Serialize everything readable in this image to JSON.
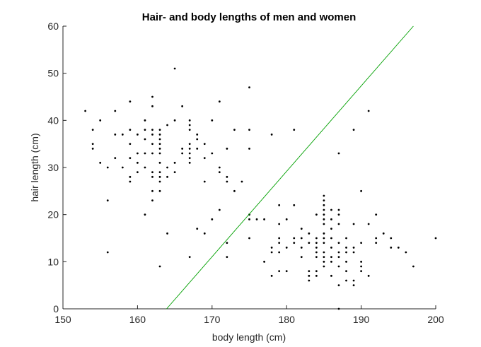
{
  "chart_data": {
    "type": "scatter",
    "title": "Hair- and body lengths of men and women",
    "xlabel": "body length (cm)",
    "ylabel": "hair length (cm)",
    "xlim": [
      150,
      200
    ],
    "ylim": [
      0,
      60
    ],
    "xticks": [
      150,
      160,
      170,
      180,
      190,
      200
    ],
    "yticks": [
      0,
      10,
      20,
      30,
      40,
      50,
      60
    ],
    "grid": false,
    "colors": {
      "points": "#000000",
      "boundary": "#00a000",
      "axis": "#262626"
    },
    "series": [
      {
        "kind": "points",
        "points": [
          [
            153,
            42
          ],
          [
            154,
            38
          ],
          [
            154,
            35
          ],
          [
            154,
            34
          ],
          [
            155,
            40
          ],
          [
            155,
            31
          ],
          [
            156,
            30
          ],
          [
            156,
            23
          ],
          [
            156,
            12
          ],
          [
            157,
            42
          ],
          [
            157,
            37
          ],
          [
            157,
            32
          ],
          [
            158,
            37
          ],
          [
            158,
            30
          ],
          [
            159,
            44
          ],
          [
            159,
            38
          ],
          [
            159,
            35
          ],
          [
            159,
            32
          ],
          [
            159,
            28
          ],
          [
            159,
            27
          ],
          [
            160,
            37
          ],
          [
            160,
            33
          ],
          [
            160,
            31
          ],
          [
            160,
            29
          ],
          [
            161,
            40
          ],
          [
            161,
            38
          ],
          [
            161,
            36
          ],
          [
            161,
            33
          ],
          [
            161,
            30
          ],
          [
            161,
            20
          ],
          [
            162,
            45
          ],
          [
            162,
            43
          ],
          [
            162,
            38
          ],
          [
            162,
            37
          ],
          [
            162,
            35
          ],
          [
            162,
            33
          ],
          [
            162,
            29
          ],
          [
            162,
            28
          ],
          [
            162,
            25
          ],
          [
            162,
            23
          ],
          [
            163,
            38
          ],
          [
            163,
            37
          ],
          [
            163,
            36
          ],
          [
            163,
            35
          ],
          [
            163,
            34
          ],
          [
            163,
            33
          ],
          [
            163,
            31
          ],
          [
            163,
            29
          ],
          [
            163,
            28
          ],
          [
            163,
            27
          ],
          [
            163,
            25
          ],
          [
            163,
            9
          ],
          [
            164,
            39
          ],
          [
            164,
            30
          ],
          [
            164,
            28
          ],
          [
            164,
            16
          ],
          [
            165,
            51
          ],
          [
            165,
            40
          ],
          [
            165,
            31
          ],
          [
            165,
            29
          ],
          [
            166,
            43
          ],
          [
            166,
            34
          ],
          [
            166,
            33
          ],
          [
            167,
            40
          ],
          [
            167,
            39
          ],
          [
            167,
            38
          ],
          [
            167,
            35
          ],
          [
            167,
            34
          ],
          [
            167,
            33
          ],
          [
            167,
            32
          ],
          [
            167,
            31
          ],
          [
            167,
            11
          ],
          [
            168,
            37
          ],
          [
            168,
            36
          ],
          [
            168,
            34
          ],
          [
            168,
            17
          ],
          [
            169,
            35
          ],
          [
            169,
            32
          ],
          [
            169,
            27
          ],
          [
            169,
            16
          ],
          [
            170,
            40
          ],
          [
            170,
            33
          ],
          [
            170,
            19
          ],
          [
            171,
            44
          ],
          [
            171,
            30
          ],
          [
            171,
            29
          ],
          [
            171,
            21
          ],
          [
            172,
            34
          ],
          [
            172,
            28
          ],
          [
            172,
            27
          ],
          [
            172,
            14
          ],
          [
            172,
            11
          ],
          [
            173,
            38
          ],
          [
            173,
            25
          ],
          [
            174,
            27
          ],
          [
            175,
            47
          ],
          [
            175,
            38
          ],
          [
            175,
            34
          ],
          [
            175,
            20
          ],
          [
            175,
            19
          ],
          [
            175,
            15
          ],
          [
            176,
            19
          ],
          [
            177,
            19
          ],
          [
            177,
            10
          ],
          [
            178,
            37
          ],
          [
            178,
            13
          ],
          [
            178,
            12
          ],
          [
            178,
            7
          ],
          [
            179,
            22
          ],
          [
            179,
            18
          ],
          [
            179,
            15
          ],
          [
            179,
            14
          ],
          [
            179,
            12
          ],
          [
            179,
            8
          ],
          [
            180,
            19
          ],
          [
            180,
            13
          ],
          [
            180,
            8
          ],
          [
            181,
            38
          ],
          [
            181,
            22
          ],
          [
            181,
            15
          ],
          [
            181,
            14
          ],
          [
            182,
            17
          ],
          [
            182,
            15
          ],
          [
            182,
            13
          ],
          [
            182,
            11
          ],
          [
            183,
            16
          ],
          [
            183,
            14
          ],
          [
            183,
            8
          ],
          [
            183,
            7
          ],
          [
            183,
            6
          ],
          [
            184,
            20
          ],
          [
            184,
            15
          ],
          [
            184,
            14
          ],
          [
            184,
            13
          ],
          [
            184,
            12
          ],
          [
            184,
            11
          ],
          [
            184,
            8
          ],
          [
            184,
            7
          ],
          [
            185,
            24
          ],
          [
            185,
            23
          ],
          [
            185,
            22
          ],
          [
            185,
            21
          ],
          [
            185,
            20
          ],
          [
            185,
            19
          ],
          [
            185,
            18
          ],
          [
            185,
            16
          ],
          [
            185,
            15
          ],
          [
            185,
            14
          ],
          [
            185,
            12
          ],
          [
            185,
            11
          ],
          [
            185,
            10
          ],
          [
            185,
            9
          ],
          [
            186,
            21
          ],
          [
            186,
            19
          ],
          [
            186,
            17
          ],
          [
            186,
            15
          ],
          [
            186,
            13
          ],
          [
            186,
            11
          ],
          [
            186,
            10
          ],
          [
            186,
            7
          ],
          [
            187,
            33
          ],
          [
            187,
            21
          ],
          [
            187,
            20
          ],
          [
            187,
            18
          ],
          [
            187,
            14
          ],
          [
            187,
            12
          ],
          [
            187,
            11
          ],
          [
            187,
            9
          ],
          [
            187,
            5
          ],
          [
            187,
            0
          ],
          [
            188,
            15
          ],
          [
            188,
            13
          ],
          [
            188,
            12
          ],
          [
            188,
            10
          ],
          [
            188,
            8
          ],
          [
            188,
            6
          ],
          [
            189,
            38
          ],
          [
            189,
            18
          ],
          [
            189,
            13
          ],
          [
            189,
            12
          ],
          [
            189,
            6
          ],
          [
            189,
            5
          ],
          [
            190,
            25
          ],
          [
            190,
            14
          ],
          [
            190,
            10
          ],
          [
            190,
            9
          ],
          [
            190,
            8
          ],
          [
            191,
            42
          ],
          [
            191,
            18
          ],
          [
            191,
            7
          ],
          [
            192,
            20
          ],
          [
            192,
            15
          ],
          [
            192,
            14
          ],
          [
            193,
            16
          ],
          [
            194,
            15
          ],
          [
            194,
            13
          ],
          [
            195,
            13
          ],
          [
            196,
            12
          ],
          [
            197,
            9
          ],
          [
            200,
            15
          ]
        ]
      },
      {
        "kind": "line",
        "points": [
          [
            163.9,
            0
          ],
          [
            197,
            60
          ]
        ]
      }
    ]
  }
}
